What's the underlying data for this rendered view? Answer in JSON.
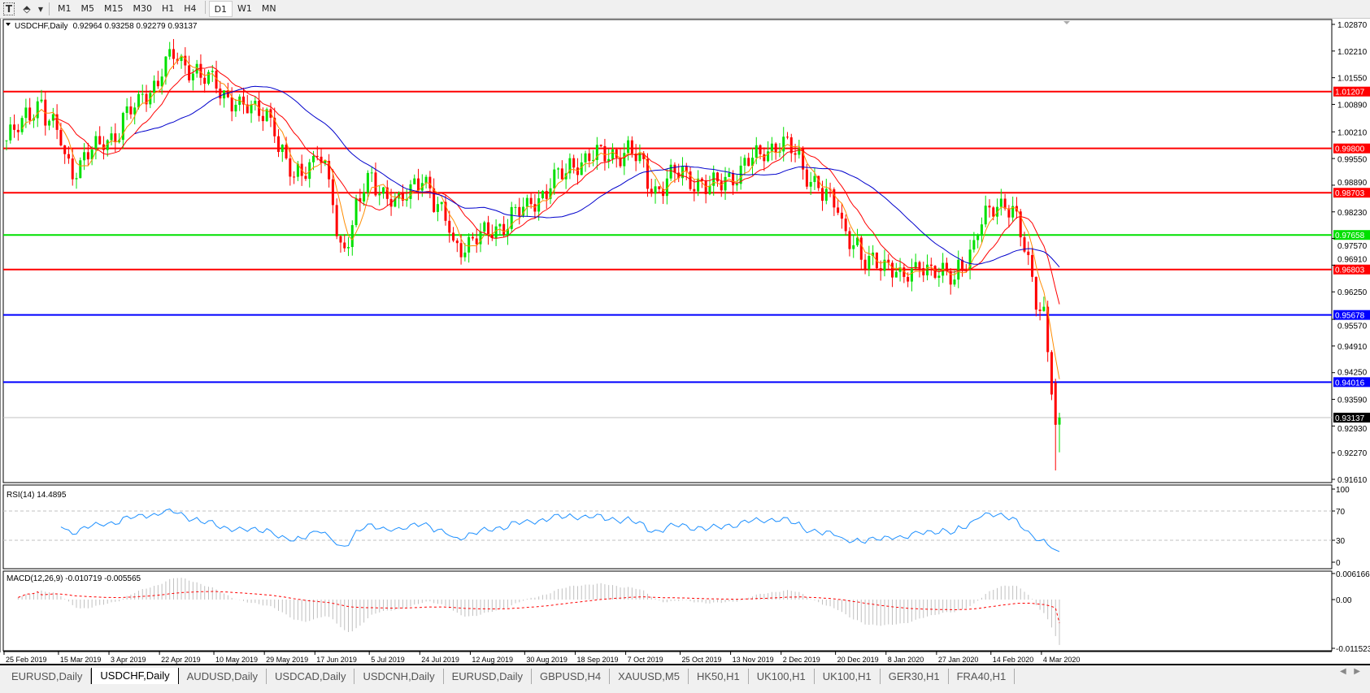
{
  "toolbar": {
    "icons": [
      "text-tool-icon",
      "line-tools-icon",
      "dropdown-arrow-icon"
    ],
    "text_glyph": "T",
    "timeframes": [
      "M1",
      "M5",
      "M15",
      "M30",
      "H1",
      "H4",
      "D1",
      "W1",
      "MN"
    ],
    "active_timeframe": "D1"
  },
  "chart": {
    "header_symbol": "USDCHF,Daily",
    "header_ohlc": "0.92964 0.93258 0.92279 0.93137",
    "price_ticks": [
      "1.02870",
      "1.02210",
      "1.01550",
      "1.00890",
      "1.00210",
      "0.99550",
      "0.98890",
      "0.98230",
      "0.97570",
      "0.96910",
      "0.96250",
      "0.95570",
      "0.94910",
      "0.94250",
      "0.93590",
      "0.92930",
      "0.92270",
      "0.91610"
    ],
    "levels": [
      {
        "price": "1.01207",
        "color": "#ff0000"
      },
      {
        "price": "0.99800",
        "color": "#ff0000"
      },
      {
        "price": "0.98703",
        "color": "#ff0000"
      },
      {
        "price": "0.97658",
        "color": "#00e000"
      },
      {
        "price": "0.96803",
        "color": "#ff0000"
      },
      {
        "price": "0.95678",
        "color": "#0000ff"
      },
      {
        "price": "0.94016",
        "color": "#0000ff"
      }
    ],
    "current_price": "0.93137",
    "candle_colors": {
      "bull": "#00e000",
      "bear": "#ff0000"
    },
    "ma_colors": [
      "#ff8c00",
      "#ff0000",
      "#0000cc"
    ],
    "rsi_label": "RSI(14) 14.4895",
    "rsi_ticks": [
      "100",
      "70",
      "30",
      "0"
    ],
    "macd_label": "MACD(12,26,9) -0.010719 -0.005565",
    "macd_ticks": [
      "0.006166",
      "0.00",
      "-0.011523"
    ],
    "date_labels": [
      "25 Feb 2019",
      "15 Mar 2019",
      "3 Apr 2019",
      "22 Apr 2019",
      "10 May 2019",
      "29 May 2019",
      "17 Jun 2019",
      "5 Jul 2019",
      "24 Jul 2019",
      "12 Aug 2019",
      "30 Aug 2019",
      "18 Sep 2019",
      "7 Oct 2019",
      "25 Oct 2019",
      "13 Nov 2019",
      "2 Dec 2019",
      "20 Dec 2019",
      "8 Jan 2020",
      "27 Jan 2020",
      "14 Feb 2020",
      "4 Mar 2020"
    ]
  },
  "chart_data": {
    "type": "candlestick",
    "symbol": "USDCHF",
    "timeframe": "Daily",
    "ylim": [
      0.9161,
      1.0287
    ],
    "last_bar": {
      "open": 0.92964,
      "high": 0.93258,
      "low": 0.92279,
      "close": 0.93137
    },
    "approx_closes": [
      [
        "2019-02-25",
        1.0
      ],
      [
        "2019-03-08",
        1.01
      ],
      [
        "2019-03-20",
        0.993
      ],
      [
        "2019-04-03",
        1.001
      ],
      [
        "2019-04-16",
        1.012
      ],
      [
        "2019-04-25",
        1.0205
      ],
      [
        "2019-05-02",
        1.018
      ],
      [
        "2019-05-10",
        1.0135
      ],
      [
        "2019-05-23",
        1.007
      ],
      [
        "2019-05-29",
        1.0075
      ],
      [
        "2019-06-07",
        0.99
      ],
      [
        "2019-06-17",
        0.9975
      ],
      [
        "2019-06-25",
        0.9735
      ],
      [
        "2019-07-05",
        0.9905
      ],
      [
        "2019-07-16",
        0.984
      ],
      [
        "2019-07-24",
        0.9915
      ],
      [
        "2019-08-05",
        0.974
      ],
      [
        "2019-08-12",
        0.975
      ],
      [
        "2019-08-30",
        0.983
      ],
      [
        "2019-09-18",
        0.995
      ],
      [
        "2019-10-07",
        0.9975
      ],
      [
        "2019-10-16",
        0.988
      ],
      [
        "2019-10-25",
        0.992
      ],
      [
        "2019-11-05",
        0.988
      ],
      [
        "2019-11-13",
        0.9915
      ],
      [
        "2019-11-29",
        0.9995
      ],
      [
        "2019-12-02",
        0.999
      ],
      [
        "2019-12-20",
        0.983
      ],
      [
        "2019-12-31",
        0.969
      ],
      [
        "2020-01-08",
        0.97
      ],
      [
        "2020-01-14",
        0.965
      ],
      [
        "2020-01-20",
        0.97
      ],
      [
        "2020-01-31",
        0.965
      ],
      [
        "2020-02-14",
        0.983
      ],
      [
        "2020-02-19",
        0.985
      ],
      [
        "2020-02-24",
        0.98
      ],
      [
        "2020-02-28",
        0.965
      ],
      [
        "2020-03-04",
        0.958
      ],
      [
        "2020-03-06",
        0.9395
      ],
      [
        "2020-03-09",
        0.9296
      ]
    ],
    "indicators": [
      "RSI(14)",
      "MACD(12,26,9)"
    ],
    "rsi_levels": [
      30,
      70
    ],
    "rsi_last": 14.4895,
    "macd_last": {
      "main": -0.010719,
      "signal": -0.005565
    }
  },
  "tabs": {
    "items": [
      "EURUSD,Daily",
      "USDCHF,Daily",
      "AUDUSD,Daily",
      "USDCAD,Daily",
      "USDCNH,Daily",
      "EURUSD,Daily",
      "GBPUSD,H4",
      "XAUUSD,M5",
      "HK50,H1",
      "UK100,H1",
      "UK100,H1",
      "GER30,H1",
      "FRA40,H1"
    ],
    "active": "USDCHF,Daily",
    "scroll_left": "◀",
    "scroll_right": "▶"
  }
}
